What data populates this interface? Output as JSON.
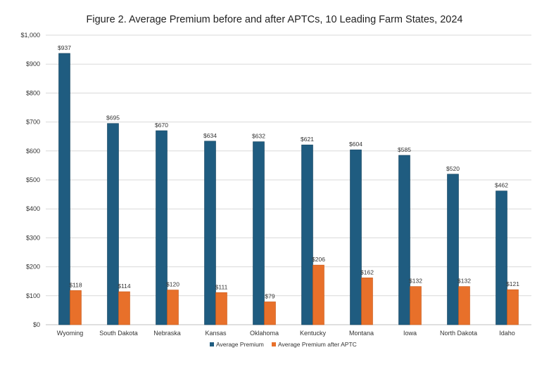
{
  "chart_data": {
    "type": "bar",
    "title": "Figure 2. Average Premium before and after APTCs, 10 Leading Farm States, 2024",
    "xlabel": "",
    "ylabel": "",
    "ylim": [
      0,
      1000
    ],
    "yticks": [
      "$0",
      "$100",
      "$200",
      "$300",
      "$400",
      "$500",
      "$600",
      "$700",
      "$800",
      "$900",
      "$1,000"
    ],
    "ytick_values": [
      0,
      100,
      200,
      300,
      400,
      500,
      600,
      700,
      800,
      900,
      1000
    ],
    "grid": true,
    "legend_position": "bottom",
    "categories": [
      "Wyoming",
      "South Dakota",
      "Nebraska",
      "Kansas",
      "Oklahoma",
      "Kentucky",
      "Montana",
      "Iowa",
      "North Dakota",
      "Idaho"
    ],
    "series": [
      {
        "name": "Average Premium",
        "color": "#1f5c80",
        "values": [
          937,
          695,
          670,
          634,
          632,
          621,
          604,
          585,
          520,
          462
        ],
        "labels": [
          "$937",
          "$695",
          "$670",
          "$634",
          "$632",
          "$621",
          "$604",
          "$585",
          "$520",
          "$462"
        ]
      },
      {
        "name": "Average Premium after APTC",
        "color": "#e8702a",
        "values": [
          118,
          114,
          120,
          111,
          79,
          206,
          162,
          132,
          132,
          121
        ],
        "labels": [
          "$118",
          "$114",
          "$120",
          "$111",
          "$79",
          "$206",
          "$162",
          "$132",
          "$132",
          "$121"
        ]
      }
    ]
  }
}
